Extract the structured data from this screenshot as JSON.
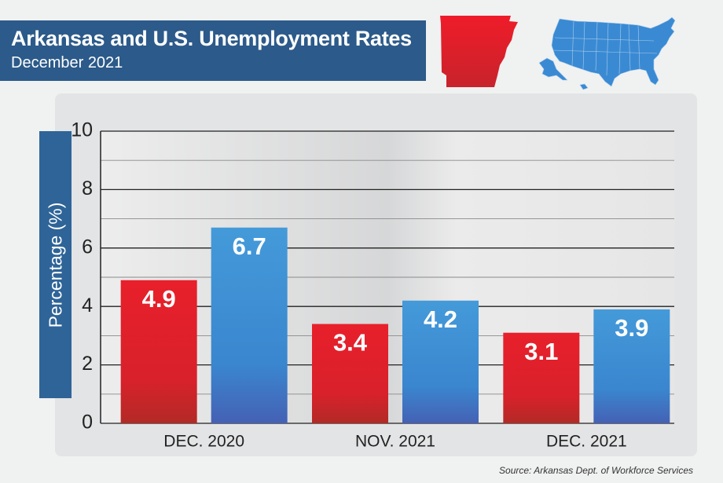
{
  "header": {
    "title": "Arkansas and U.S. Unemployment Rates",
    "subtitle": "December 2021"
  },
  "colors": {
    "arkansas": "#e3212b",
    "us": "#3f93d6",
    "banner": "#2c5a8a"
  },
  "icons": [
    "arkansas-map-icon",
    "us-map-icon"
  ],
  "source": "Source: Arkansas Dept. of Workforce Services",
  "chart_data": {
    "type": "bar",
    "title": "Arkansas and U.S. Unemployment Rates",
    "subtitle": "December 2021",
    "xlabel": "",
    "ylabel": "Percentage (%)",
    "ylim": [
      0,
      10
    ],
    "yticks": [
      0,
      2,
      4,
      6,
      8,
      10
    ],
    "grid": true,
    "categories": [
      "DEC. 2020",
      "NOV. 2021",
      "DEC. 2021"
    ],
    "series": [
      {
        "name": "Arkansas",
        "values": [
          4.9,
          3.4,
          3.1
        ]
      },
      {
        "name": "U.S.",
        "values": [
          6.7,
          4.2,
          3.9
        ]
      }
    ],
    "data_labels": [
      [
        "4.9",
        "3.4",
        "3.1"
      ],
      [
        "6.7",
        "4.2",
        "3.9"
      ]
    ]
  }
}
